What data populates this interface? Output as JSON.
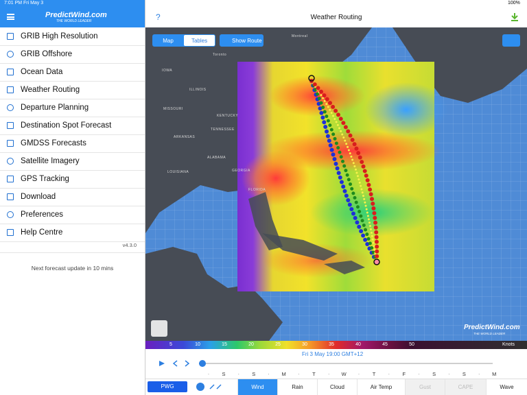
{
  "status_bar": {
    "time": "7:01 PM",
    "date": "Fri May 3",
    "battery": "100%"
  },
  "sidebar": {
    "logo": "PredictWind.com",
    "tagline": "THE WORLD LEADER",
    "menu": [
      "GRIB High Resolution",
      "GRIB Offshore",
      "Ocean Data",
      "Weather Routing",
      "Departure Planning",
      "Destination Spot Forecast",
      "GMDSS Forecasts",
      "Satellite Imagery",
      "GPS Tracking",
      "Download",
      "Preferences",
      "Help Centre"
    ],
    "version": "v4.3.0",
    "update_note": "Next forecast update in 10 mins"
  },
  "header": {
    "help": "?",
    "title": "Weather Routing"
  },
  "map": {
    "toggle": [
      "Map",
      "Tables"
    ],
    "show_route": "Show Route",
    "labels": [
      "Montreal",
      "Toronto",
      "IOWA",
      "ILLINOIS",
      "MISSOURI",
      "KENTUCKY",
      "TENNESSEE",
      "ARKANSAS",
      "LOUISIANA",
      "ALABAMA",
      "GEORGIA",
      "FLORIDA"
    ],
    "watermark": "PredictWind.com",
    "watermark_tagline": "THE WORLD LEADER"
  },
  "wind_scale": {
    "labels": [
      "5",
      "10",
      "15",
      "20",
      "25",
      "30",
      "35",
      "40",
      "45",
      "50"
    ],
    "unit": "Knots"
  },
  "timeline": {
    "date": "Fri 3 May 19:00 GMT+12",
    "days": [
      "S",
      "S",
      "M",
      "T",
      "W",
      "T",
      "F",
      "S",
      "S",
      "M"
    ]
  },
  "tabs": {
    "model": "PWG",
    "items": [
      "Wind",
      "Rain",
      "Cloud",
      "Air Temp",
      "Gust",
      "CAPE",
      "Wave"
    ]
  }
}
